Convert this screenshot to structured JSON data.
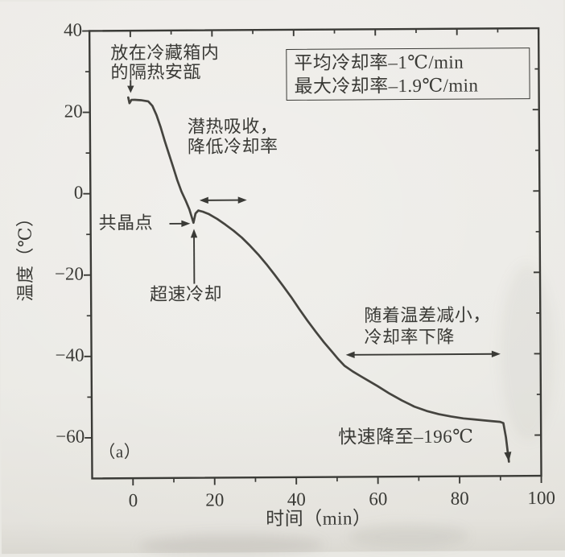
{
  "colors": {
    "paper": "#e9e8e3",
    "ink": "#3a3a36",
    "curve": "#45443f"
  },
  "chart_data": {
    "type": "line",
    "title": "",
    "xlabel": "时间（min）",
    "ylabel": "温度（℃）",
    "panel_label": "（a）",
    "xlim": [
      -10,
      100
    ],
    "ylim": [
      -70,
      40
    ],
    "xticks": [
      0,
      20,
      40,
      60,
      80,
      100
    ],
    "xticks_minor": [
      10,
      30,
      50,
      70,
      90
    ],
    "yticks": [
      40,
      20,
      0,
      -20,
      -40,
      -60
    ],
    "yticks_minor": [
      30,
      10,
      -10,
      -30,
      -50
    ],
    "grid": false,
    "frame": "box-with-mirrored-ticks",
    "series": [
      {
        "name": "cooling-curve",
        "end_arrow": true,
        "x": [
          -0.6,
          -0.3,
          0.2,
          1.0,
          2.5,
          4.3,
          5.3,
          6.3,
          7.3,
          8.3,
          9.3,
          10.3,
          11.3,
          12.3,
          13.3,
          14.2,
          15.2,
          15.7,
          16.4,
          17.5,
          19,
          21,
          23,
          25,
          27,
          29,
          31,
          33,
          35,
          37,
          39,
          41,
          43,
          45,
          47,
          49,
          50.5,
          52,
          54,
          56,
          58,
          60,
          63,
          66,
          69,
          72,
          75,
          78,
          81,
          84,
          87,
          90,
          90.8,
          91.4,
          92.1
        ],
        "y": [
          23.6,
          22.2,
          23.0,
          23.0,
          22.9,
          22.6,
          21.5,
          19.2,
          16.2,
          12.8,
          9.6,
          6.4,
          3.2,
          0.4,
          -1.8,
          -4.0,
          -7.3,
          -5.0,
          -4.3,
          -4.6,
          -5.2,
          -6.4,
          -7.8,
          -9.3,
          -11.0,
          -13.0,
          -15.2,
          -17.6,
          -20.2,
          -22.9,
          -25.7,
          -28.7,
          -31.6,
          -34.3,
          -36.9,
          -39.3,
          -41.1,
          -42.7,
          -44.1,
          -45.3,
          -46.5,
          -47.7,
          -49.6,
          -51.3,
          -52.8,
          -53.9,
          -54.7,
          -55.3,
          -55.8,
          -56.1,
          -56.4,
          -56.7,
          -57.0,
          -60.5,
          -66.5
        ]
      }
    ],
    "stats_box": {
      "line1": "平均冷却率–1℃/min",
      "line2": "最大冷却率–1.9℃/min"
    },
    "annotations": {
      "ampoule": {
        "line1": "放在冷藏箱内",
        "line2": "的隔热安瓿"
      },
      "latent_heat": {
        "line1": "潜热吸收，",
        "line2": "降低冷却率"
      },
      "eutectic_point": {
        "label": "共晶点"
      },
      "supercooling": {
        "label": "超速冷却"
      },
      "temp_diff": {
        "line1": "随着温差减小，",
        "line2": "冷却率下降"
      },
      "rapid_drop": {
        "label": "快速降至–196℃"
      }
    },
    "arrows": [
      {
        "name": "ampoule-pointer-arrow",
        "kind": "single",
        "x1": 0,
        "y1": 27.9,
        "x2": 0,
        "y2": 24.7
      },
      {
        "name": "eutectic-pointer-arrow",
        "kind": "single",
        "x1": 9.3,
        "y1": -7.5,
        "x2": 14.4,
        "y2": -7.5
      },
      {
        "name": "supercooling-pointer-arrow",
        "kind": "single",
        "x1": 15.3,
        "y1": -22.3,
        "x2": 15.3,
        "y2": -8.8
      },
      {
        "name": "latent-heat-span-arrow",
        "kind": "double",
        "x1": 16.7,
        "y1": -1.8,
        "x2": 28.3,
        "y2": -1.8
      },
      {
        "name": "temp-diff-span-arrow",
        "kind": "double",
        "x1": 52.3,
        "y1": -40.0,
        "x2": 90.2,
        "y2": -40.0
      }
    ]
  }
}
